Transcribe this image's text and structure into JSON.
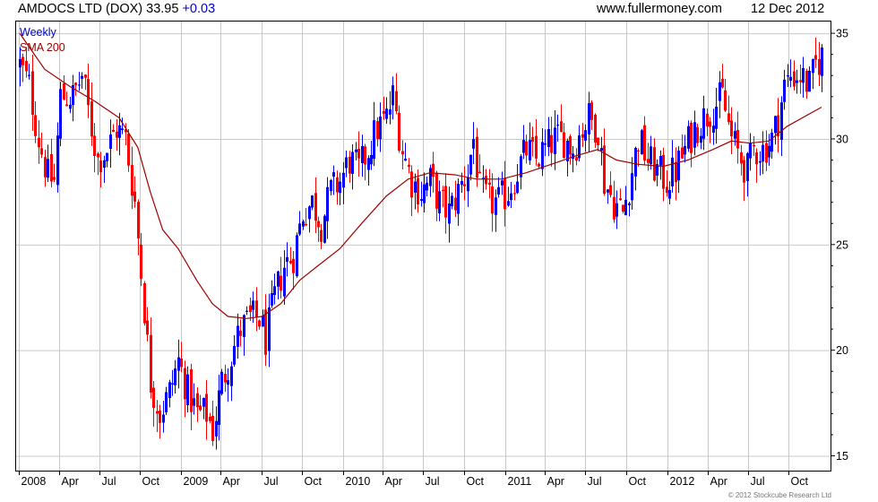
{
  "header": {
    "title": "AMDOCS LTD (DOX) 33.95",
    "change": "+0.03",
    "website": "www.fullermoney.com",
    "date": "12 Dec 2012"
  },
  "legend": {
    "frequency": "Weekly",
    "indicator": "SMA 200"
  },
  "copyright": "© 2012 Stockcube Research Ltd",
  "colors": {
    "up_bar": "#0000ff",
    "down_bar": "#ff0000",
    "sma_line": "#a00000",
    "grid": "#c8c8c8",
    "plot_border": "#000000",
    "weekly_label": "#0000cc",
    "sma_label": "#a00000"
  },
  "chart_data": {
    "type": "ohlc",
    "title": "AMDOCS LTD (DOX) 33.95",
    "xlabel": "",
    "ylabel": "",
    "y_ticks": [
      15,
      20,
      25,
      30,
      35
    ],
    "ylim": [
      14.3,
      35.6
    ],
    "y_axis_side": "right",
    "x_tick_labels": [
      "2008",
      "Apr",
      "Jul",
      "Oct",
      "2009",
      "Apr",
      "Jul",
      "Oct",
      "2010",
      "Apr",
      "Jul",
      "Oct",
      "2011",
      "Apr",
      "Jul",
      "Oct",
      "2012",
      "Apr",
      "Jul",
      "Oct"
    ],
    "x_range": [
      "2008-01-04",
      "2012-12-14"
    ],
    "grid": true,
    "series": [
      {
        "name": "Weekly",
        "style": "ohlc-bars",
        "anchors": [
          [
            "2008-01-04",
            33.5
          ],
          [
            "2008-01-25",
            32.5
          ],
          [
            "2008-02-15",
            30.0
          ],
          [
            "2008-03-07",
            28.2
          ],
          [
            "2008-03-21",
            28.0
          ],
          [
            "2008-04-04",
            32.0
          ],
          [
            "2008-05-02",
            32.0
          ],
          [
            "2008-05-23",
            33.0
          ],
          [
            "2008-06-13",
            30.5
          ],
          [
            "2008-06-27",
            29.0
          ],
          [
            "2008-07-18",
            29.5
          ],
          [
            "2008-08-08",
            30.5
          ],
          [
            "2008-08-29",
            30.0
          ],
          [
            "2008-09-19",
            27.0
          ],
          [
            "2008-10-10",
            22.0
          ],
          [
            "2008-10-24",
            18.5
          ],
          [
            "2008-11-14",
            17.0
          ],
          [
            "2008-12-05",
            18.0
          ],
          [
            "2008-12-26",
            19.5
          ],
          [
            "2009-01-16",
            18.0
          ],
          [
            "2009-02-06",
            17.0
          ],
          [
            "2009-02-27",
            17.0
          ],
          [
            "2009-03-13",
            16.2
          ],
          [
            "2009-04-03",
            18.5
          ],
          [
            "2009-04-24",
            19.8
          ],
          [
            "2009-05-15",
            21.0
          ],
          [
            "2009-06-05",
            21.5
          ],
          [
            "2009-06-26",
            21.5
          ],
          [
            "2009-07-10",
            20.5
          ],
          [
            "2009-07-31",
            22.5
          ],
          [
            "2009-08-21",
            24.0
          ],
          [
            "2009-09-11",
            24.5
          ],
          [
            "2009-10-02",
            26.5
          ],
          [
            "2009-10-23",
            27.0
          ],
          [
            "2009-11-13",
            26.0
          ],
          [
            "2009-12-04",
            27.5
          ],
          [
            "2009-12-25",
            28.0
          ],
          [
            "2010-01-15",
            29.0
          ],
          [
            "2010-02-05",
            28.5
          ],
          [
            "2010-02-26",
            29.5
          ],
          [
            "2010-03-19",
            30.5
          ],
          [
            "2010-04-09",
            31.0
          ],
          [
            "2010-04-23",
            32.0
          ],
          [
            "2010-05-14",
            29.5
          ],
          [
            "2010-06-04",
            28.0
          ],
          [
            "2010-06-25",
            27.5
          ],
          [
            "2010-07-16",
            28.0
          ],
          [
            "2010-08-06",
            27.0
          ],
          [
            "2010-08-27",
            26.5
          ],
          [
            "2010-09-17",
            27.5
          ],
          [
            "2010-10-08",
            28.5
          ],
          [
            "2010-10-22",
            30.0
          ],
          [
            "2010-11-05",
            27.5
          ],
          [
            "2010-11-26",
            27.0
          ],
          [
            "2010-12-17",
            27.0
          ],
          [
            "2011-01-07",
            27.5
          ],
          [
            "2011-01-28",
            28.5
          ],
          [
            "2011-02-18",
            29.5
          ],
          [
            "2011-03-11",
            29.0
          ],
          [
            "2011-04-01",
            29.5
          ],
          [
            "2011-04-22",
            30.0
          ],
          [
            "2011-05-13",
            30.0
          ],
          [
            "2011-06-03",
            29.5
          ],
          [
            "2011-06-24",
            30.5
          ],
          [
            "2011-07-08",
            31.0
          ],
          [
            "2011-07-29",
            30.5
          ],
          [
            "2011-08-12",
            28.0
          ],
          [
            "2011-09-02",
            27.0
          ],
          [
            "2011-09-23",
            26.5
          ],
          [
            "2011-10-14",
            28.5
          ],
          [
            "2011-10-28",
            30.0
          ],
          [
            "2011-11-18",
            29.0
          ],
          [
            "2011-12-09",
            28.5
          ],
          [
            "2011-12-30",
            28.0
          ],
          [
            "2012-01-20",
            28.5
          ],
          [
            "2012-02-10",
            29.5
          ],
          [
            "2012-03-02",
            30.5
          ],
          [
            "2012-03-23",
            31.0
          ],
          [
            "2012-04-13",
            31.5
          ],
          [
            "2012-05-04",
            32.0
          ],
          [
            "2012-05-25",
            30.0
          ],
          [
            "2012-06-15",
            29.0
          ],
          [
            "2012-06-29",
            28.5
          ],
          [
            "2012-07-13",
            29.5
          ],
          [
            "2012-08-03",
            29.5
          ],
          [
            "2012-08-24",
            30.0
          ],
          [
            "2012-09-07",
            31.0
          ],
          [
            "2012-09-21",
            32.5
          ],
          [
            "2012-10-05",
            33.0
          ],
          [
            "2012-10-26",
            33.0
          ],
          [
            "2012-11-16",
            32.5
          ],
          [
            "2012-11-30",
            33.5
          ],
          [
            "2012-12-14",
            33.95
          ]
        ]
      },
      {
        "name": "SMA 200",
        "style": "line",
        "points": [
          [
            "2008-01-04",
            35.0
          ],
          [
            "2008-02-29",
            33.3
          ],
          [
            "2008-04-25",
            32.5
          ],
          [
            "2008-06-20",
            31.8
          ],
          [
            "2008-08-15",
            31.0
          ],
          [
            "2008-09-26",
            29.6
          ],
          [
            "2008-10-24",
            27.5
          ],
          [
            "2008-11-21",
            25.7
          ],
          [
            "2008-12-26",
            24.8
          ],
          [
            "2009-02-06",
            23.3
          ],
          [
            "2009-03-13",
            22.2
          ],
          [
            "2009-04-17",
            21.6
          ],
          [
            "2009-05-29",
            21.5
          ],
          [
            "2009-07-03",
            21.6
          ],
          [
            "2009-08-14",
            22.2
          ],
          [
            "2009-09-25",
            23.3
          ],
          [
            "2009-11-06",
            24.0
          ],
          [
            "2009-12-25",
            24.8
          ],
          [
            "2010-02-12",
            26.0
          ],
          [
            "2010-04-09",
            27.3
          ],
          [
            "2010-05-28",
            28.1
          ],
          [
            "2010-07-16",
            28.4
          ],
          [
            "2010-09-10",
            28.3
          ],
          [
            "2010-10-29",
            28.1
          ],
          [
            "2010-12-24",
            28.1
          ],
          [
            "2011-02-18",
            28.4
          ],
          [
            "2011-04-15",
            28.8
          ],
          [
            "2011-06-10",
            29.2
          ],
          [
            "2011-07-29",
            29.5
          ],
          [
            "2011-09-09",
            29.0
          ],
          [
            "2011-10-28",
            28.8
          ],
          [
            "2011-12-23",
            28.7
          ],
          [
            "2012-02-17",
            29.0
          ],
          [
            "2012-04-13",
            29.5
          ],
          [
            "2012-05-25",
            29.9
          ],
          [
            "2012-07-06",
            29.8
          ],
          [
            "2012-08-17",
            29.9
          ],
          [
            "2012-09-28",
            30.6
          ],
          [
            "2012-11-09",
            31.1
          ],
          [
            "2012-12-14",
            31.5
          ]
        ]
      }
    ]
  }
}
